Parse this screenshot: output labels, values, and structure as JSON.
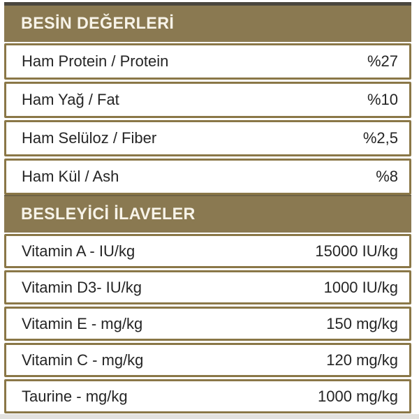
{
  "colors": {
    "band_olive": "#8a7951",
    "row_border_olive": "#8a7747",
    "header_top_edge": "#4a463e",
    "header_text": "#f7f3e8",
    "row_text": "#252525",
    "background": "#ffffff",
    "bottom_strip": "#e3e2df"
  },
  "sections": [
    {
      "title": "BESİN DEĞERLERİ",
      "rows": [
        {
          "label": "Ham Protein / Protein",
          "value": "%27"
        },
        {
          "label": "Ham Yağ / Fat",
          "value": "%10"
        },
        {
          "label": "Ham Selüloz / Fiber",
          "value": "%2,5"
        },
        {
          "label": "Ham Kül / Ash",
          "value": "%8"
        }
      ]
    },
    {
      "title": "BESLEYİCİ İLAVELER",
      "rows": [
        {
          "label": "Vitamin A - IU/kg",
          "value": "15000 IU/kg"
        },
        {
          "label": "Vitamin D3- IU/kg",
          "value": "1000 IU/kg"
        },
        {
          "label": "Vitamin E - mg/kg",
          "value": "150 mg/kg"
        },
        {
          "label": "Vitamin C - mg/kg",
          "value": "120 mg/kg"
        },
        {
          "label": "Taurine - mg/kg",
          "value": "1000 mg/kg"
        }
      ]
    }
  ]
}
